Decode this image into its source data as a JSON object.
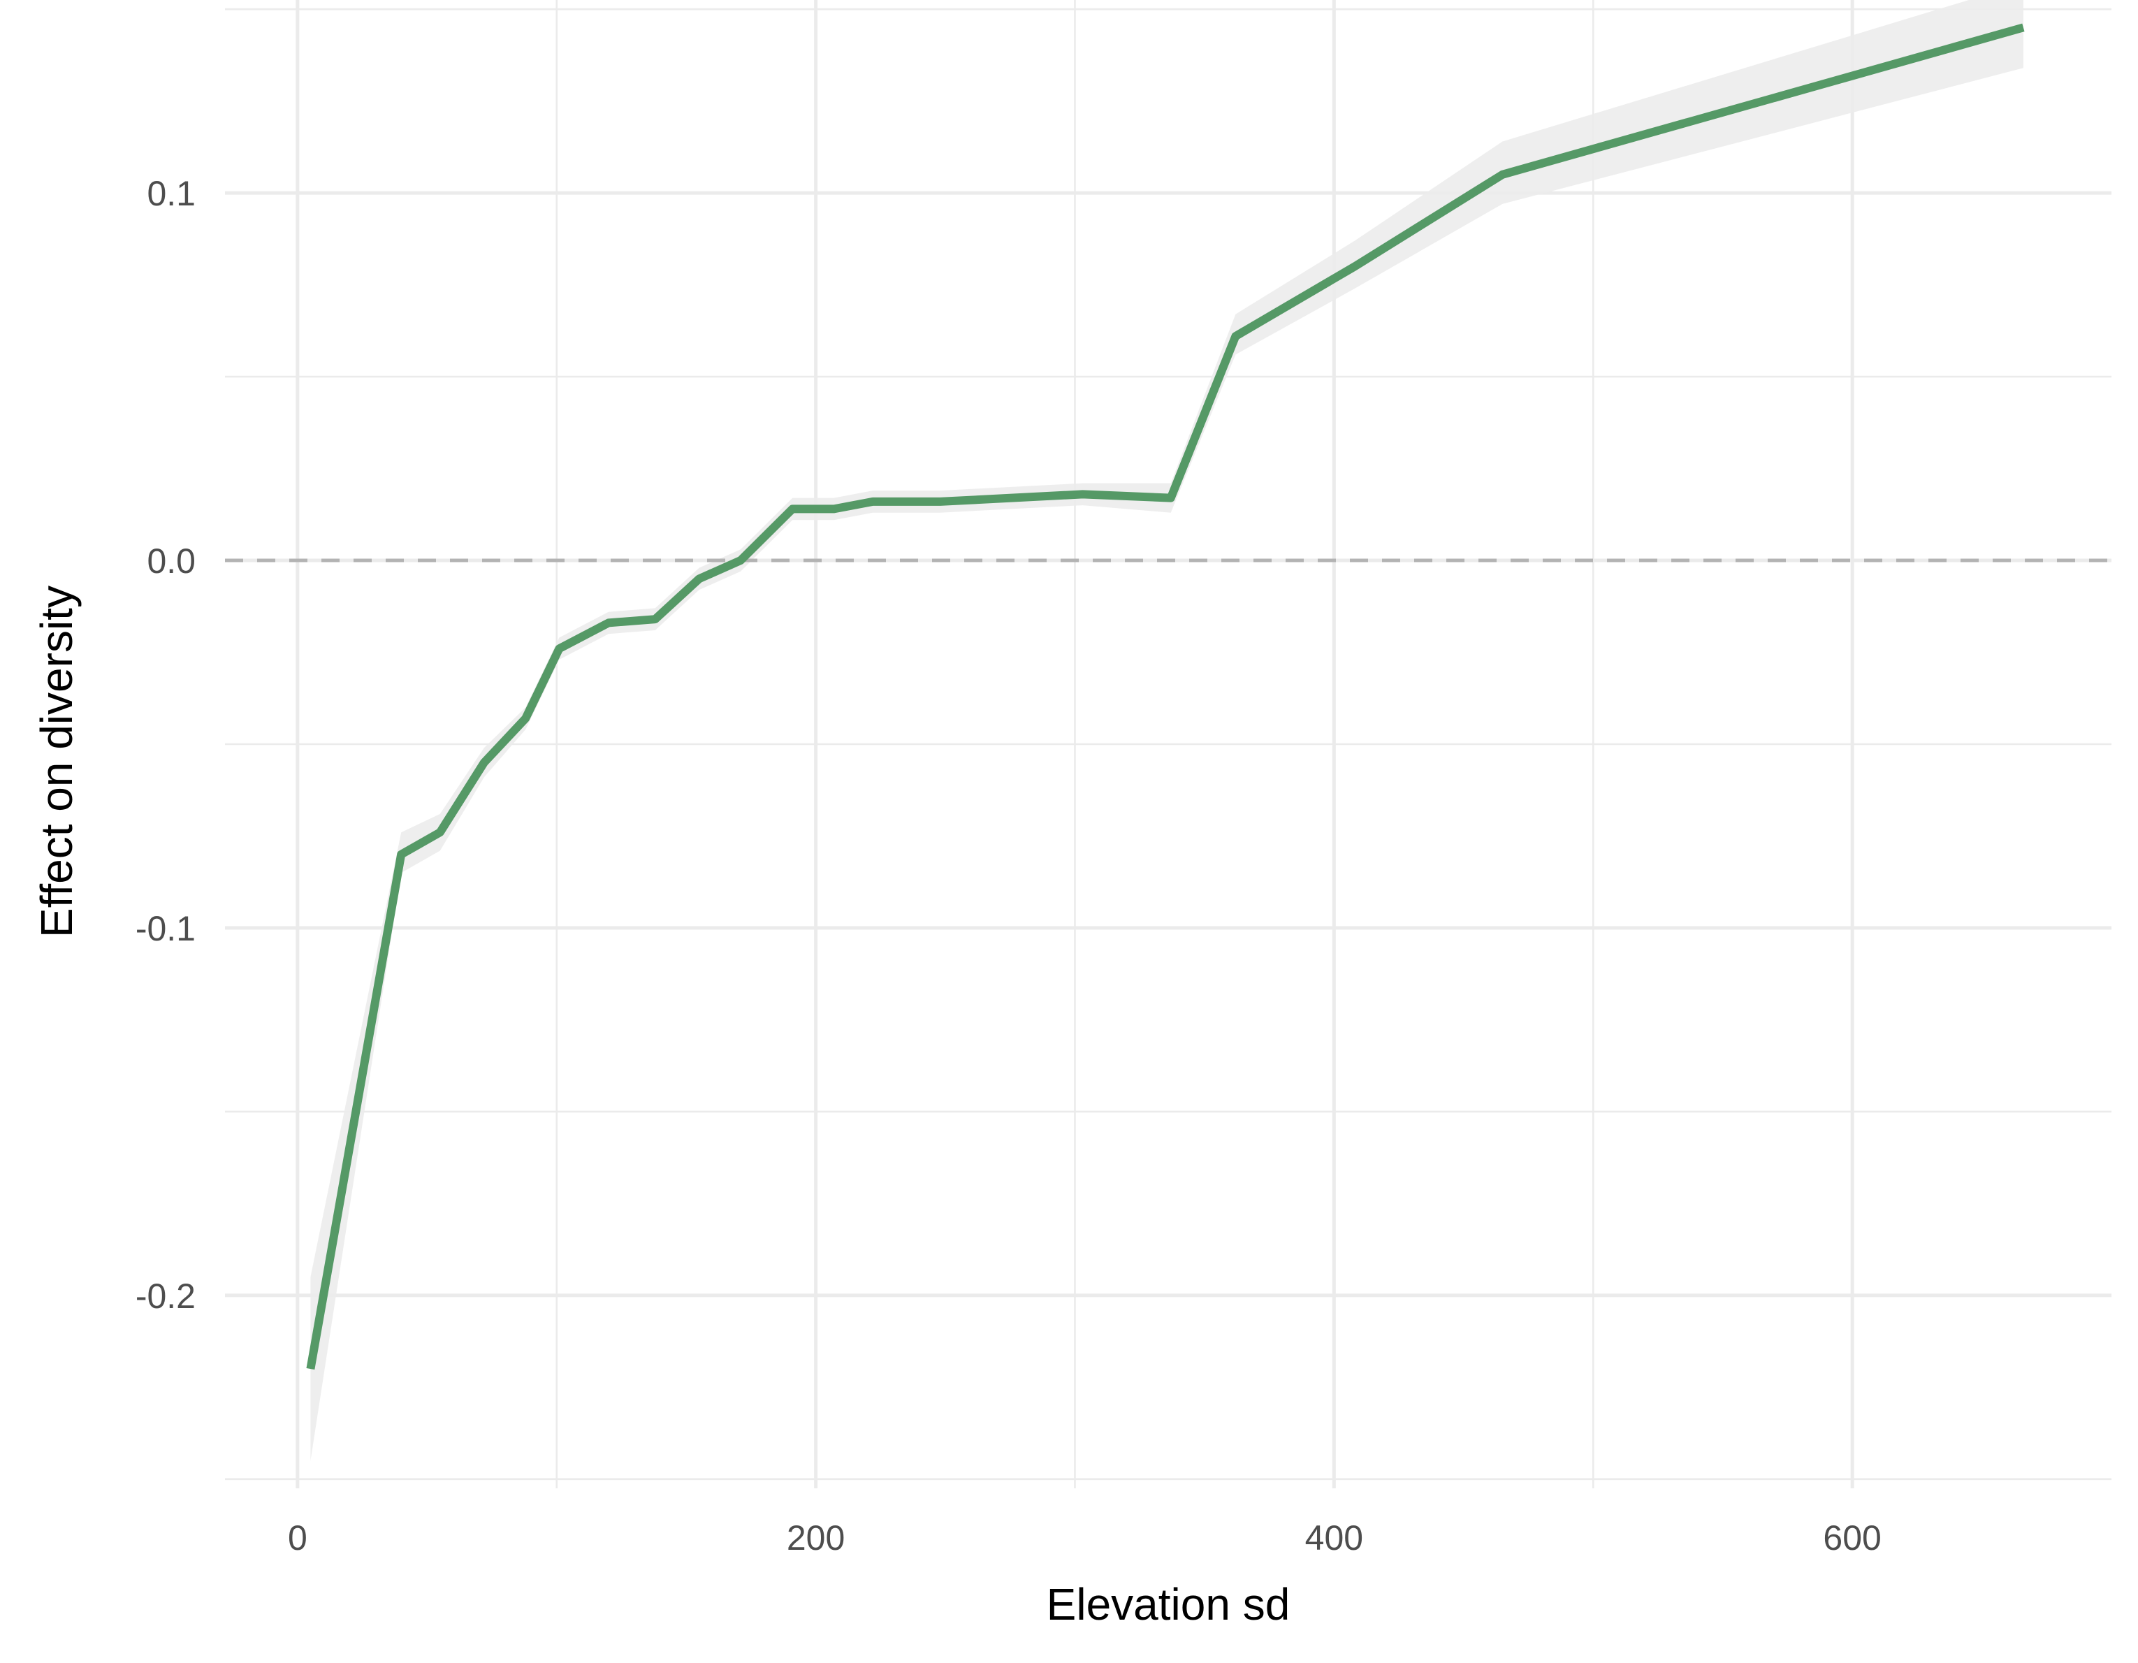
{
  "chart_data": {
    "type": "line",
    "title": "",
    "xlabel": "Elevation sd",
    "ylabel": "Effect on diversity",
    "xlim": [
      -28,
      700
    ],
    "ylim": [
      -0.2525,
      0.1525
    ],
    "x_ticks": [
      0,
      200,
      400,
      600
    ],
    "x_tick_labels": [
      "0",
      "200",
      "400",
      "600"
    ],
    "x_minor_ticks": [
      100,
      300,
      500
    ],
    "y_ticks": [
      -0.2,
      -0.1,
      0.0,
      0.1
    ],
    "y_tick_labels": [
      "-0.2",
      "-0.1",
      "0.0",
      "0.1"
    ],
    "y_minor_ticks": [
      -0.25,
      -0.15,
      -0.05,
      0.05,
      0.15
    ],
    "grid": true,
    "reference_line": {
      "y": 0.0,
      "style": "dashed",
      "color": "#b3b3b3"
    },
    "colors": {
      "line": "#559966",
      "ribbon": "#ececec"
    },
    "series": [
      {
        "x": [
          5,
          40,
          55,
          72,
          88,
          101,
          120,
          138,
          155,
          171,
          191,
          207,
          222,
          248,
          303,
          337,
          362,
          408,
          465,
          666
        ],
        "y": [
          -0.22,
          -0.08,
          -0.074,
          -0.055,
          -0.043,
          -0.024,
          -0.017,
          -0.016,
          -0.005,
          0.0,
          0.014,
          0.014,
          0.016,
          0.016,
          0.018,
          0.017,
          0.061,
          0.08,
          0.105,
          0.145
        ],
        "lower": [
          -0.245,
          -0.085,
          -0.079,
          -0.059,
          -0.046,
          -0.027,
          -0.02,
          -0.019,
          -0.008,
          -0.003,
          0.011,
          0.011,
          0.013,
          0.013,
          0.015,
          0.013,
          0.056,
          0.074,
          0.097,
          0.134
        ],
        "upper": [
          -0.195,
          -0.074,
          -0.069,
          -0.051,
          -0.04,
          -0.021,
          -0.014,
          -0.013,
          -0.002,
          0.003,
          0.017,
          0.017,
          0.019,
          0.019,
          0.021,
          0.021,
          0.067,
          0.087,
          0.114,
          0.157
        ]
      }
    ]
  }
}
